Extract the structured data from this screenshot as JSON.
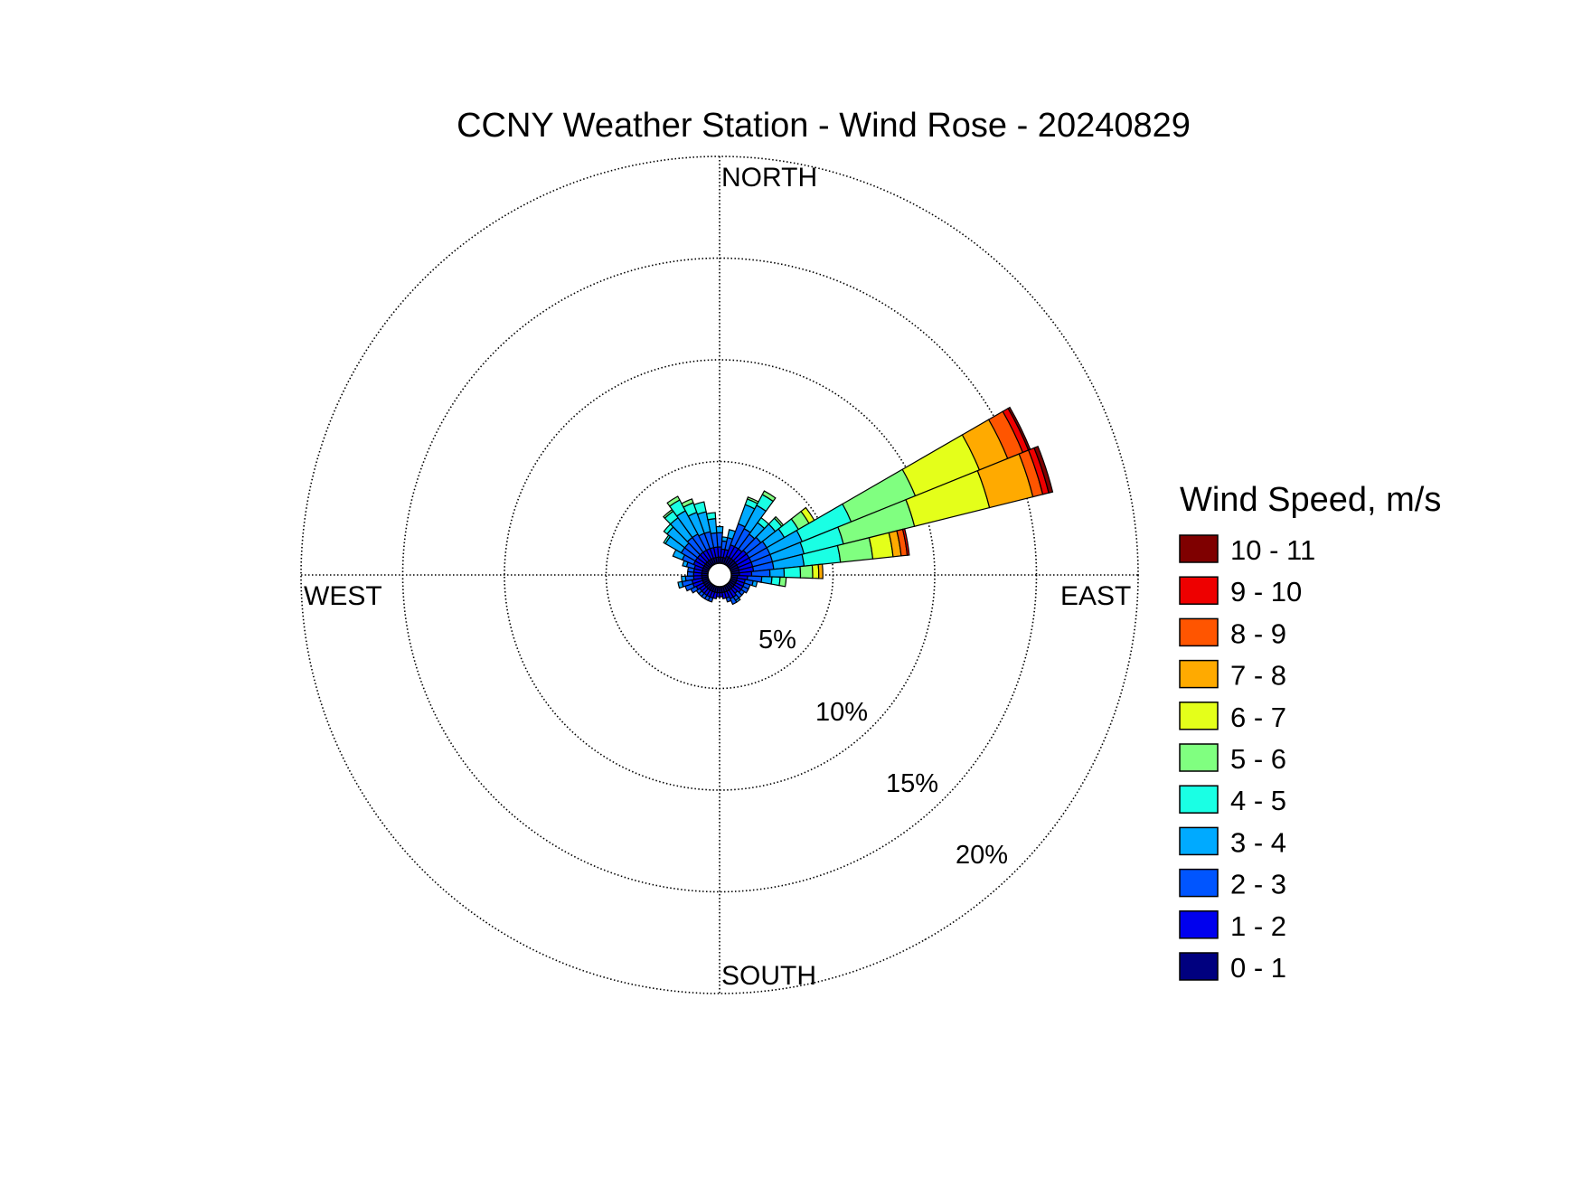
{
  "chart_data": {
    "type": "wind-rose",
    "title": "CCNY Weather Station - Wind Rose - 20240829",
    "directions": [
      "NORTH",
      "EAST",
      "SOUTH",
      "WEST"
    ],
    "radial_ticks": [
      "5%",
      "10%",
      "15%",
      "20%"
    ],
    "radial_max": 20,
    "grid": true,
    "legend": {
      "title": "Wind Speed, m/s",
      "placement": "right",
      "bins": [
        {
          "label": "10 - 11",
          "color": "#7f0000"
        },
        {
          "label": "9 - 10",
          "color": "#ee0000"
        },
        {
          "label": "8 - 9",
          "color": "#ff5500"
        },
        {
          "label": "7 - 8",
          "color": "#ffaa00"
        },
        {
          "label": "6 - 7",
          "color": "#e4ff1a"
        },
        {
          "label": "5 - 6",
          "color": "#80ff80"
        },
        {
          "label": "4 - 5",
          "color": "#1affe4"
        },
        {
          "label": "3 - 4",
          "color": "#00aaff"
        },
        {
          "label": "2 - 3",
          "color": "#0055ff"
        },
        {
          "label": "1 - 2",
          "color": "#0000ee"
        },
        {
          "label": "0 - 1",
          "color": "#00007f"
        }
      ]
    },
    "sector_width_deg": 8,
    "bin_order_from_center": [
      "0 - 1",
      "1 - 2",
      "2 - 3",
      "3 - 4",
      "4 - 5",
      "5 - 6",
      "6 - 7",
      "7 - 8",
      "8 - 9",
      "9 - 10",
      "10 - 11"
    ],
    "sectors": [
      {
        "dir": 0,
        "freqs": [
          0.3,
          0.5,
          0.7,
          0.3
        ]
      },
      {
        "dir": 8,
        "freqs": [
          0.3,
          0.4,
          0.4,
          0.2
        ]
      },
      {
        "dir": 16,
        "freqs": [
          0.3,
          0.4,
          0.6,
          0.4
        ]
      },
      {
        "dir": 24,
        "freqs": [
          0.4,
          0.6,
          1.1,
          1.0,
          0.3,
          0.1
        ]
      },
      {
        "dir": 32,
        "freqs": [
          0.4,
          0.6,
          1.0,
          1.3,
          0.6,
          0.2
        ]
      },
      {
        "dir": 40,
        "freqs": [
          0.4,
          0.6,
          0.9,
          0.7,
          0.3
        ]
      },
      {
        "dir": 48,
        "freqs": [
          0.4,
          0.7,
          0.9,
          0.9,
          0.4,
          0.1
        ]
      },
      {
        "dir": 56,
        "freqs": [
          0.4,
          0.7,
          1.0,
          1.0,
          0.8,
          0.6,
          0.3
        ]
      },
      {
        "dir": 64,
        "freqs": [
          0.4,
          0.7,
          1.0,
          1.7,
          2.6,
          3.4,
          3.4,
          1.5,
          0.8,
          0.3,
          0.1
        ]
      },
      {
        "dir": 72,
        "freqs": [
          0.4,
          0.7,
          1.0,
          1.6,
          2.0,
          3.6,
          3.8,
          2.2,
          0.5,
          0.3,
          0.2
        ]
      },
      {
        "dir": 80,
        "freqs": [
          0.4,
          0.7,
          1.0,
          1.5,
          1.8,
          1.6,
          1.0,
          0.4,
          0.3,
          0.1
        ]
      },
      {
        "dir": 88,
        "freqs": [
          0.4,
          0.6,
          0.9,
          0.7,
          0.8,
          0.6,
          0.3,
          0.2
        ]
      },
      {
        "dir": 96,
        "freqs": [
          0.3,
          0.5,
          0.7,
          0.5,
          0.4,
          0.3
        ]
      },
      {
        "dir": 104,
        "freqs": [
          0.3,
          0.4,
          0.4,
          0.2
        ]
      },
      {
        "dir": 112,
        "freqs": [
          0.3,
          0.4,
          0.3
        ]
      },
      {
        "dir": 120,
        "freqs": [
          0.3,
          0.4,
          0.3
        ]
      },
      {
        "dir": 128,
        "freqs": [
          0.3,
          0.4,
          0.2
        ]
      },
      {
        "dir": 136,
        "freqs": [
          0.3,
          0.3,
          0.3
        ]
      },
      {
        "dir": 144,
        "freqs": [
          0.3,
          0.4,
          0.2,
          0.1
        ]
      },
      {
        "dir": 152,
        "freqs": [
          0.3,
          0.4,
          0.3
        ]
      },
      {
        "dir": 160,
        "freqs": [
          0.3,
          0.3,
          0.2
        ]
      },
      {
        "dir": 168,
        "freqs": [
          0.3,
          0.3
        ]
      },
      {
        "dir": 176,
        "freqs": [
          0.3,
          0.2
        ]
      },
      {
        "dir": 184,
        "freqs": [
          0.3,
          0.2
        ]
      },
      {
        "dir": 192,
        "freqs": [
          0.3,
          0.3
        ]
      },
      {
        "dir": 200,
        "freqs": [
          0.3,
          0.3,
          0.2
        ]
      },
      {
        "dir": 208,
        "freqs": [
          0.3,
          0.3,
          0.2
        ]
      },
      {
        "dir": 216,
        "freqs": [
          0.3,
          0.3,
          0.2
        ]
      },
      {
        "dir": 224,
        "freqs": [
          0.3,
          0.3,
          0.2
        ]
      },
      {
        "dir": 232,
        "freqs": [
          0.3,
          0.3,
          0.2
        ]
      },
      {
        "dir": 240,
        "freqs": [
          0.3,
          0.4,
          0.3
        ]
      },
      {
        "dir": 248,
        "freqs": [
          0.3,
          0.5,
          0.4
        ]
      },
      {
        "dir": 256,
        "freqs": [
          0.3,
          0.5,
          0.5,
          0.2
        ]
      },
      {
        "dir": 264,
        "freqs": [
          0.3,
          0.4,
          0.4,
          0.2
        ]
      },
      {
        "dir": 272,
        "freqs": [
          0.3,
          0.4,
          0.3
        ]
      },
      {
        "dir": 280,
        "freqs": [
          0.3,
          0.4,
          0.3
        ]
      },
      {
        "dir": 288,
        "freqs": [
          0.3,
          0.4,
          0.4,
          0.2
        ]
      },
      {
        "dir": 296,
        "freqs": [
          0.3,
          0.5,
          0.6,
          0.5
        ]
      },
      {
        "dir": 304,
        "freqs": [
          0.3,
          0.5,
          0.8,
          0.9,
          0.1
        ]
      },
      {
        "dir": 312,
        "freqs": [
          0.3,
          0.5,
          0.8,
          1.1,
          0.2
        ]
      },
      {
        "dir": 320,
        "freqs": [
          0.3,
          0.5,
          0.9,
          1.2,
          0.4,
          0.1
        ]
      },
      {
        "dir": 328,
        "freqs": [
          0.3,
          0.5,
          0.9,
          1.3,
          0.6,
          0.2
        ]
      },
      {
        "dir": 336,
        "freqs": [
          0.3,
          0.5,
          0.8,
          1.1,
          0.5,
          0.2
        ]
      },
      {
        "dir": 344,
        "freqs": [
          0.3,
          0.5,
          0.8,
          1.0,
          0.5
        ]
      },
      {
        "dir": 352,
        "freqs": [
          0.3,
          0.5,
          0.7,
          0.7,
          0.3
        ]
      }
    ]
  }
}
